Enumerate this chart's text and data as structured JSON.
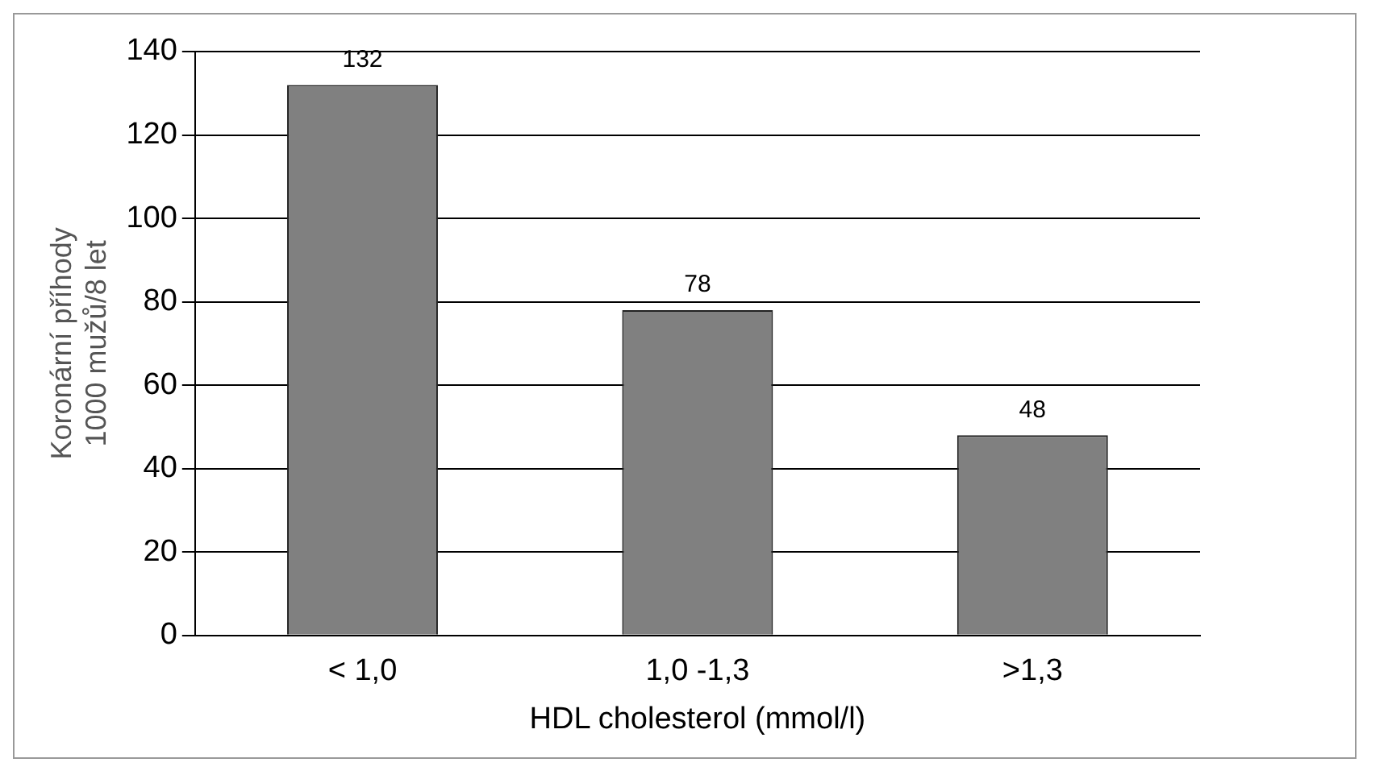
{
  "chart_data": {
    "type": "bar",
    "categories": [
      "< 1,0",
      "1,0 -1,3",
      ">1,3"
    ],
    "values": [
      132,
      78,
      48
    ],
    "color": "#808080",
    "ylim": [
      0,
      140
    ],
    "yticks": [
      0,
      20,
      40,
      60,
      80,
      100,
      120,
      140
    ],
    "grid": "y",
    "data_labels": true,
    "xlabel": "HDL cholesterol (mmol/l)",
    "ylabel": "Koronární příhody\n1000 mužů/8 let"
  }
}
